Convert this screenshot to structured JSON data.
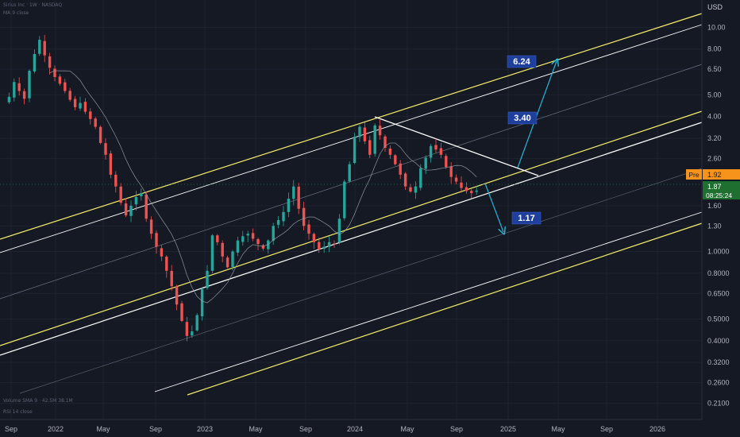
{
  "header": {
    "symbol_line": "Sirius Inc · 1W · NASDAQ",
    "indicator_line": "MA 9 close"
  },
  "footer": {
    "volume_line": "Volume SMA 9 · 42.5M 38.1M",
    "rsi_line": "RSI 14 close"
  },
  "price_axis": {
    "currency": "USD",
    "ticks": [
      "10.00",
      "8.00",
      "6.50",
      "5.00",
      "4.00",
      "3.20",
      "2.60",
      "1.60",
      "1.30",
      "1.0000",
      "0.8000",
      "0.6500",
      "0.5000",
      "0.4000",
      "0.3200",
      "0.2600",
      "0.2100"
    ]
  },
  "time_axis": {
    "ticks": [
      "Sep",
      "2022",
      "May",
      "Sep",
      "2023",
      "May",
      "Sep",
      "2024",
      "May",
      "Sep",
      "2025",
      "May",
      "Sep",
      "2026"
    ]
  },
  "badges": {
    "pre_label": "Pre",
    "pre_price": "1.92",
    "last_price": "1.87",
    "countdown": "08:25:24"
  },
  "targets": [
    "6.24",
    "3.40",
    "1.17"
  ],
  "colors": {
    "background": "#151924",
    "up": "#26a69a",
    "down": "#ef5350",
    "channel_yellow": "#f7ef6a",
    "channel_white": "#ffffff",
    "arrow": "#27b5d8",
    "label_bg": "#1e3f9c",
    "pre_badge": "#f7931a",
    "last_badge": "#1f6f30"
  },
  "chart_data": {
    "type": "candlestick",
    "y_scale": "log",
    "ylim": [
      0.19,
      12.4
    ],
    "x_range": [
      "2021-09",
      "2026-10"
    ],
    "series": [
      {
        "values": [
          4.63,
          4.9,
          5.7,
          5.2,
          4.8,
          6.4,
          7.6,
          8.8,
          7.5,
          6.6,
          6.0,
          5.6,
          5.2,
          4.75,
          4.4,
          4.6,
          4.2,
          3.9,
          3.6,
          3.05,
          2.7,
          2.2,
          1.95,
          1.65,
          1.45,
          1.6,
          1.75,
          1.82,
          1.4,
          1.2,
          1.05,
          0.95,
          0.82,
          0.7,
          0.58,
          0.49,
          0.42,
          0.44,
          0.52,
          0.68,
          0.82,
          1.18,
          1.1,
          0.95,
          0.85,
          1.0,
          1.12,
          1.17,
          1.2,
          1.14,
          1.08,
          1.03,
          1.12,
          1.3,
          1.38,
          1.5,
          1.72,
          1.95,
          1.55,
          1.3,
          1.2,
          1.1,
          1.02,
          1.05,
          1.1,
          1.08,
          1.4,
          2.05,
          2.45,
          3.25,
          3.6,
          3.1,
          2.7,
          3.65,
          3.3,
          2.9,
          2.7,
          2.45,
          2.2,
          1.95,
          1.85,
          1.95,
          2.35,
          2.62,
          2.95,
          2.85,
          2.7,
          2.38,
          2.15,
          2.05,
          1.92,
          1.86,
          1.82,
          1.87
        ]
      }
    ],
    "moving_average": {
      "period": 9
    },
    "targets": [
      6.24,
      3.4,
      1.17
    ],
    "pre_market": 1.92,
    "last": 1.87
  }
}
